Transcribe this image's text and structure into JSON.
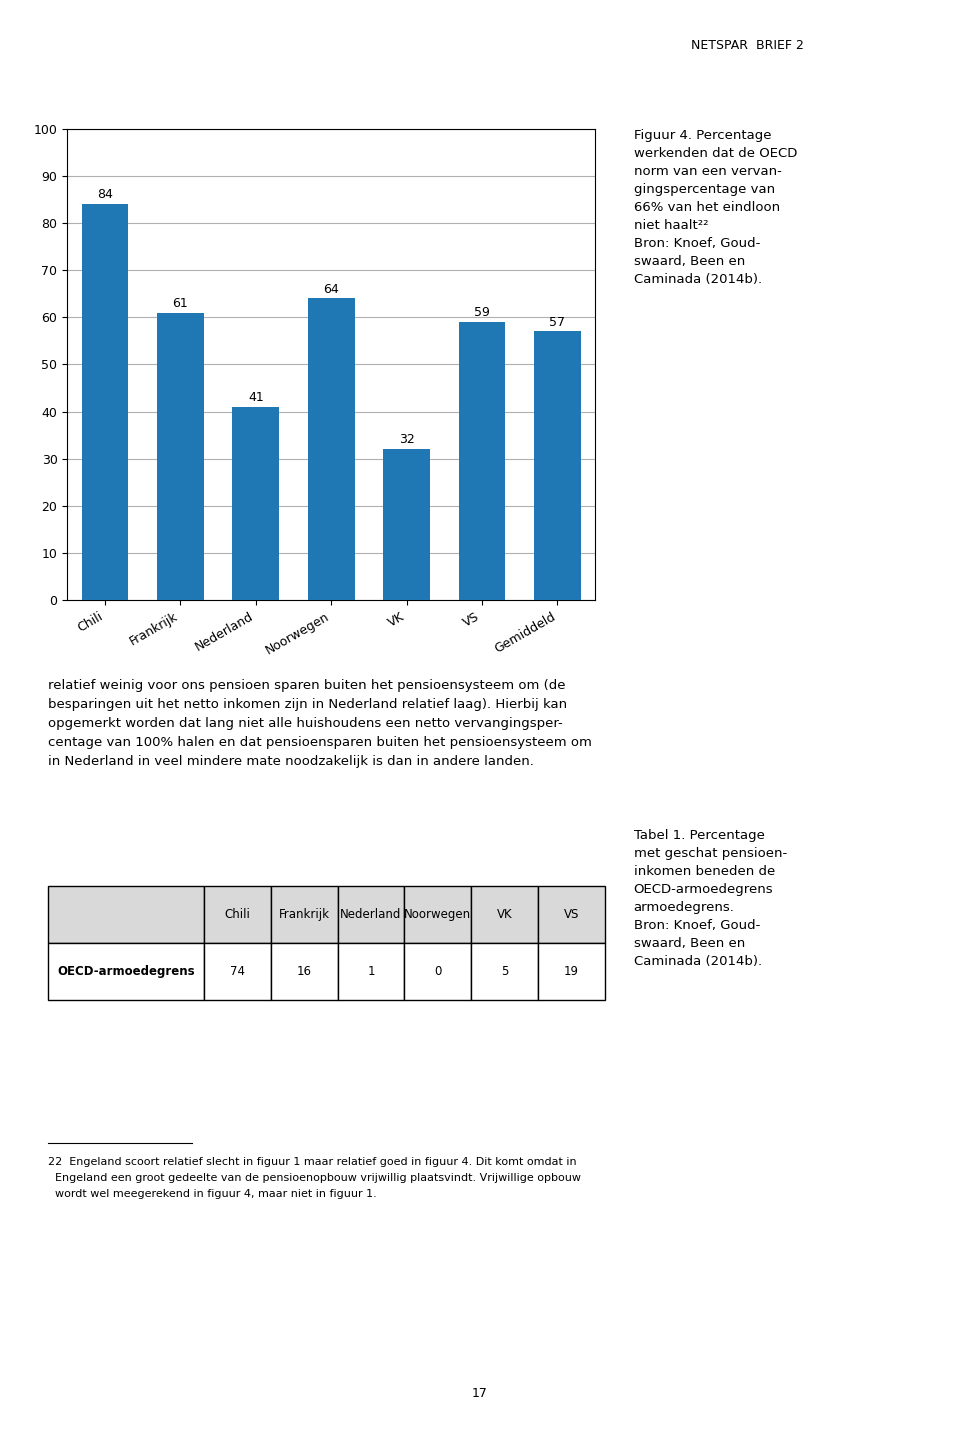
{
  "chart_data": [
    {
      "type": "bar",
      "title": "Figuur 4. Percentage\nwerkenden dat de OECD\nnorm van een vervan-\ngingspercentage van\n66% van het eindloon\nniet haalt²²\nBron: Knoef, Goud-\nswaard, Been en\nCaminada (2014b).",
      "categories": [
        "Chili",
        "Frankrijk",
        "Nederland",
        "Noorwegen",
        "VK",
        "VS",
        "Gemiddeld"
      ],
      "values": [
        84,
        61,
        41,
        64,
        32,
        59,
        57
      ],
      "ylim": [
        0,
        100
      ],
      "yticks": [
        0,
        10,
        20,
        30,
        40,
        50,
        60,
        70,
        80,
        90,
        100
      ],
      "grid": true,
      "data_labels": true,
      "annotations": [
        "NETSPAR  BRIEF 2",
        "relatief weinig voor ons pensioen sparen buiten het pensioensysteem om (de\nbesparingen uit het netto inkomen zijn in Nederland relatief laag). Hierbij kan\nopgemerkt worden dat lang niet alle huishoudens een netto vervangingsper-\ncentage van 100% halen en dat pensioensparen buiten het pensioensysteem om\nin Nederland in veel mindere mate noodzakelijk is dan in andere landen.",
        "22  Engeland scoort relatief slecht in figuur 1 maar relatief goed in figuur 4. Dit komt omdat in\n  Engeland een groot gedeelte van de pensioenopbouw vrijwillig plaatsvindt. Vrijwillige opbouw\n  wordt wel meegerekend in figuur 4, maar niet in figuur 1.",
        "17"
      ]
    },
    {
      "type": "table",
      "title": "Tabel 1. Percentage\nmet geschat pensioen-\ninkomen beneden de\nOECD-armoedegrens\narmoedegrens.\nBron: Knoef, Goud-\nswaard, Been en\nCaminada (2014b).",
      "categories": [
        "Chili",
        "Frankrijk",
        "Nederland",
        "Noorwegen",
        "VK",
        "VS"
      ],
      "series": [
        {
          "name": "OECD-armoedegrens",
          "values": [
            74,
            16,
            1,
            0,
            5,
            19
          ]
        }
      ]
    }
  ]
}
